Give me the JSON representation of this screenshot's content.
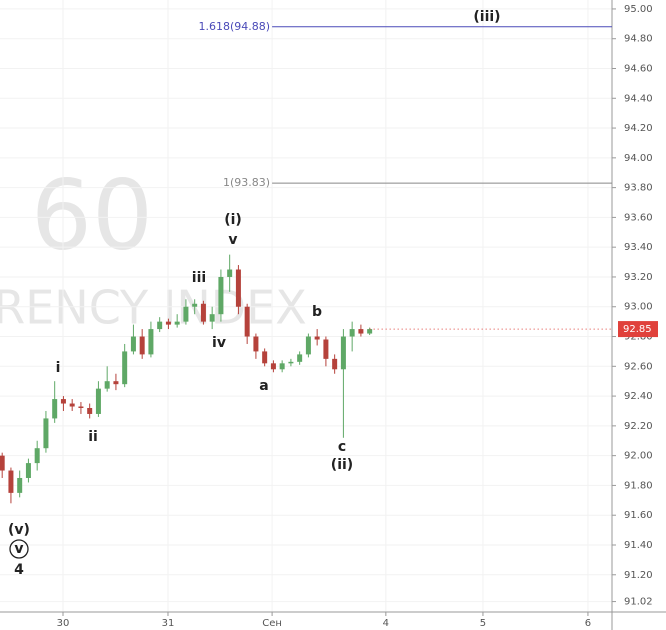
{
  "chart_data": {
    "type": "candlestick",
    "watermark": [
      "60",
      "RENCY INDEX"
    ],
    "x": [
      0.5,
      2.5,
      4.5,
      6.5,
      8.5,
      10.5,
      12.5,
      14.5,
      16.5,
      18.5,
      20.5,
      22.5,
      24.5,
      26.5,
      28.5,
      30.5,
      32.5,
      34.5,
      36.5,
      38.5,
      40.5,
      42.5,
      44.5,
      46.5,
      48.5,
      50.5,
      52.5,
      54.5,
      56.5,
      58.5,
      60.5,
      62.5,
      64.5,
      66.5,
      68.5,
      70.5,
      72.5,
      74.5,
      76.5,
      78.5,
      80.5,
      82.5,
      84.5
    ],
    "open": [
      92.0,
      91.9,
      91.75,
      91.85,
      91.95,
      92.05,
      92.25,
      92.38,
      92.35,
      92.33,
      92.32,
      92.28,
      92.45,
      92.5,
      92.48,
      92.7,
      92.8,
      92.68,
      92.85,
      92.9,
      92.88,
      92.9,
      93.0,
      93.02,
      92.9,
      92.95,
      93.2,
      93.25,
      93.0,
      92.8,
      92.7,
      92.62,
      92.58,
      92.62,
      92.63,
      92.68,
      92.8,
      92.78,
      92.65,
      92.58,
      92.8,
      92.85,
      92.82
    ],
    "high": [
      92.02,
      91.92,
      91.9,
      91.98,
      92.1,
      92.3,
      92.5,
      92.4,
      92.38,
      92.36,
      92.35,
      92.5,
      92.6,
      92.55,
      92.75,
      92.88,
      92.85,
      92.9,
      92.93,
      92.92,
      92.95,
      93.05,
      93.05,
      93.04,
      93.0,
      93.25,
      93.35,
      93.28,
      93.02,
      92.82,
      92.72,
      92.64,
      92.64,
      92.65,
      92.7,
      92.82,
      92.85,
      92.8,
      92.68,
      92.85,
      92.9,
      92.88,
      92.86
    ],
    "low": [
      91.85,
      91.68,
      91.72,
      91.82,
      91.9,
      92.02,
      92.22,
      92.3,
      92.3,
      92.28,
      92.25,
      92.26,
      92.43,
      92.44,
      92.46,
      92.68,
      92.65,
      92.66,
      92.83,
      92.85,
      92.86,
      92.88,
      92.95,
      92.88,
      92.85,
      92.9,
      93.1,
      92.95,
      92.75,
      92.65,
      92.6,
      92.56,
      92.56,
      92.6,
      92.61,
      92.66,
      92.74,
      92.6,
      92.55,
      92.12,
      92.7,
      92.8,
      92.81
    ],
    "close": [
      91.9,
      91.75,
      91.85,
      91.95,
      92.05,
      92.25,
      92.38,
      92.35,
      92.33,
      92.32,
      92.28,
      92.45,
      92.5,
      92.48,
      92.7,
      92.8,
      92.68,
      92.85,
      92.9,
      92.88,
      92.9,
      93.0,
      93.02,
      92.9,
      92.95,
      93.2,
      93.25,
      93.0,
      92.8,
      92.7,
      92.62,
      92.58,
      92.62,
      92.63,
      92.68,
      92.8,
      92.78,
      92.65,
      92.58,
      92.8,
      92.85,
      92.82,
      92.85
    ],
    "up_color": "#5fa866",
    "down_color": "#b5423b",
    "xlim": [
      0,
      139.9
    ],
    "xticks": [
      {
        "value": 14.4,
        "label": "30"
      },
      {
        "value": 38.4,
        "label": "31"
      },
      {
        "value": 62.2,
        "label": "Сен"
      },
      {
        "value": 88.2,
        "label": "4"
      },
      {
        "value": 110.4,
        "label": "5"
      },
      {
        "value": 134.4,
        "label": "6"
      }
    ],
    "ylim": [
      90.95,
      95.06
    ],
    "yticks": [
      {
        "value": 95.0,
        "label": "95.00"
      },
      {
        "value": 94.8,
        "label": "94.80"
      },
      {
        "value": 94.6,
        "label": "94.60"
      },
      {
        "value": 94.4,
        "label": "94.40"
      },
      {
        "value": 94.2,
        "label": "94.20"
      },
      {
        "value": 94.0,
        "label": "94.00"
      },
      {
        "value": 93.8,
        "label": "93.80"
      },
      {
        "value": 93.6,
        "label": "93.60"
      },
      {
        "value": 93.4,
        "label": "93.40"
      },
      {
        "value": 93.2,
        "label": "93.20"
      },
      {
        "value": 93.0,
        "label": "93.00"
      },
      {
        "value": 92.8,
        "label": "92.80"
      },
      {
        "value": 92.6,
        "label": "92.60"
      },
      {
        "value": 92.4,
        "label": "92.40"
      },
      {
        "value": 92.2,
        "label": "92.20"
      },
      {
        "value": 92.0,
        "label": "92.00"
      },
      {
        "value": 91.8,
        "label": "91.80"
      },
      {
        "value": 91.6,
        "label": "91.60"
      },
      {
        "value": 91.4,
        "label": "91.40"
      },
      {
        "value": 91.2,
        "label": "91.20"
      },
      {
        "value": 91.02,
        "label": "91.02"
      }
    ],
    "grid": true,
    "fib_lines": [
      {
        "label": "1.618(94.88)",
        "value": 94.88,
        "color": "#4a4ab8"
      },
      {
        "label": "1(93.83)",
        "value": 93.83,
        "color": "#888888"
      }
    ],
    "last_price": 92.85,
    "last_price_color": "#e0413b",
    "annotations": [
      "(iii)",
      "(i)",
      "v",
      "iii",
      "iv",
      "i",
      "ii",
      "a",
      "b",
      "c",
      "(ii)",
      "(v)",
      "v",
      "4"
    ]
  }
}
